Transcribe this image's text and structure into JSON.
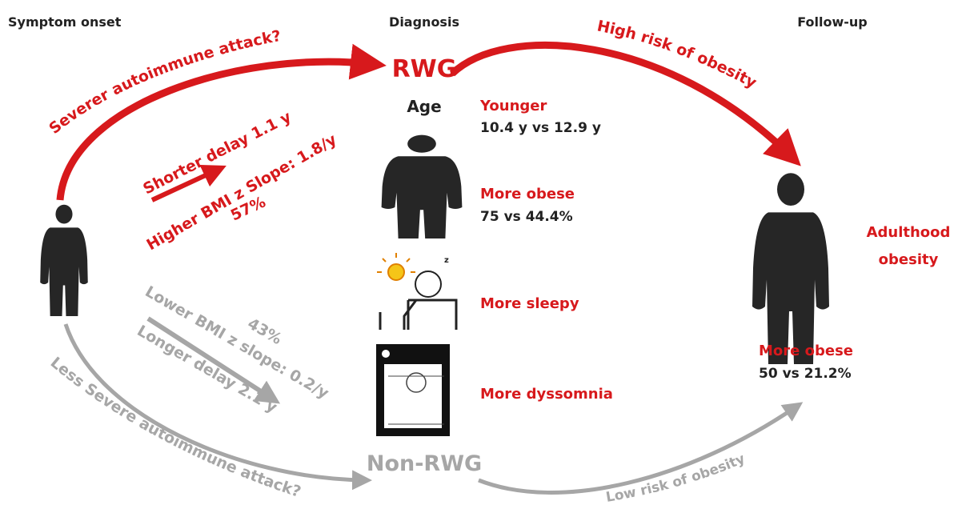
{
  "columns": [
    "Symptom onset",
    "Diagnosis",
    "Follow-up"
  ],
  "groups": {
    "rwg": "RWG",
    "non_rwg": "Non-RWG"
  },
  "arrows": {
    "severe": "Severer autoimmune attack?",
    "high_risk": "High risk of obesity",
    "less_severe": "Less Severe autoimmune attack?",
    "low_risk": "Low risk of obesity"
  },
  "rwg_onset": [
    "Shorter delay 1.1 y",
    "Higher BMI z Slope: 1.8/y",
    "57%"
  ],
  "non_rwg_onset": [
    "43%",
    "Lower BMI z slope: 0.2/y",
    "Longer delay 2.1 y"
  ],
  "age_label": "Age",
  "findings": [
    {
      "title": "Younger",
      "detail": "10.4 y vs 12.9 y"
    },
    {
      "title": "More obese",
      "detail": "75 vs 44.4%"
    },
    {
      "title": "More sleepy"
    },
    {
      "title": "More dyssomnia"
    }
  ],
  "follow_up": {
    "outcome": [
      "Adulthood",
      "obesity"
    ],
    "title": "More obese",
    "detail": "50 vs 21.2%"
  }
}
